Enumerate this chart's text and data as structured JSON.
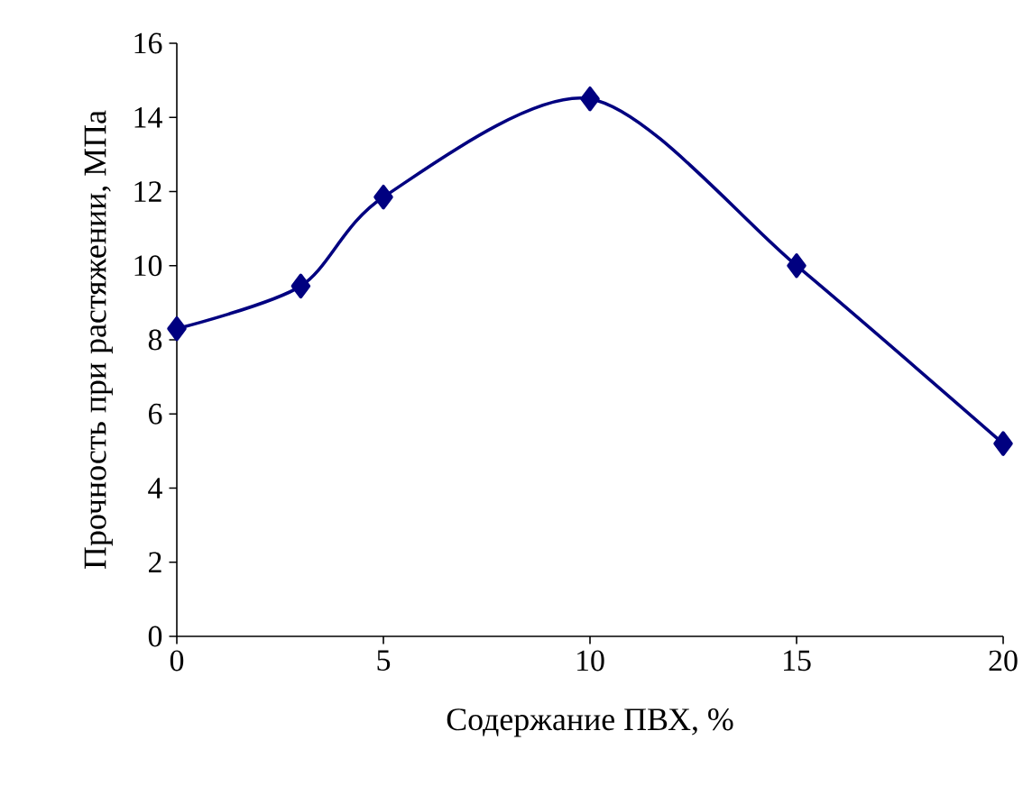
{
  "chart_data": {
    "type": "line",
    "xlabel": "Содержание ПВХ, %",
    "ylabel": "Прочность при растяжении, МПа",
    "x": [
      0,
      3,
      5,
      10,
      15,
      20
    ],
    "series": [
      {
        "color": "#000080",
        "values": [
          8.3,
          9.45,
          11.85,
          14.5,
          10,
          5.2
        ]
      }
    ],
    "xlim": [
      0,
      20
    ],
    "xticks": [
      0,
      5,
      10,
      15,
      20
    ],
    "ylim": [
      0,
      16
    ],
    "yticks": [
      0,
      2,
      4,
      6,
      8,
      10,
      12,
      14,
      16
    ],
    "marker": "diamond",
    "line_style": "solid",
    "grid": false
  }
}
